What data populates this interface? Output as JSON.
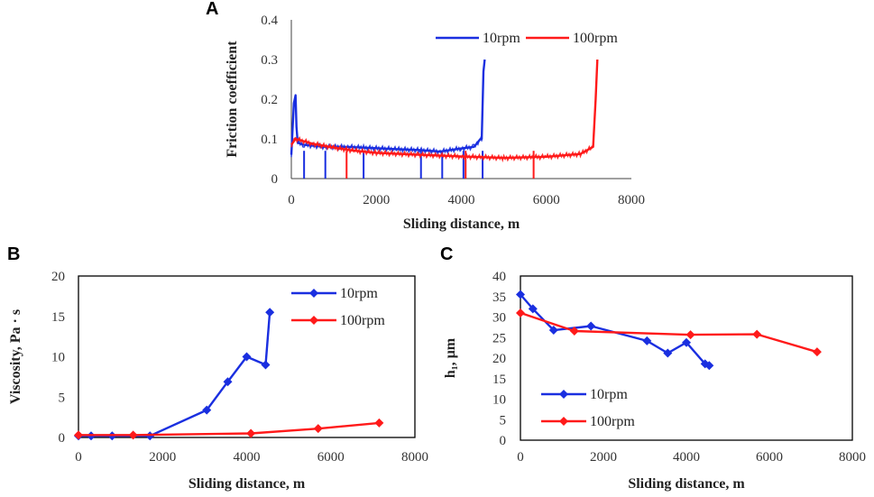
{
  "figure": {
    "panels": [
      "A",
      "B",
      "C"
    ]
  },
  "colors": {
    "series_1": "#1a2fe0",
    "series_2": "#ff1a1a",
    "axis": "#404040",
    "box": "#000000"
  },
  "chart_data": [
    {
      "id": "A",
      "type": "line",
      "title": "",
      "xlabel": "Sliding distance, m",
      "ylabel": "Friction coefficient",
      "xlim": [
        0,
        8000
      ],
      "ylim": [
        0,
        0.4
      ],
      "xticks": [
        "0",
        "2000",
        "4000",
        "6000",
        "8000"
      ],
      "yticks": [
        "0",
        "0.1",
        "0.2",
        "0.3",
        "0.4"
      ],
      "legend": "top-right",
      "series": [
        {
          "name": "10rpm",
          "x": [
            0,
            60,
            100,
            120,
            150,
            300,
            800,
            1300,
            1700,
            2500,
            3000,
            3500,
            4000,
            4300,
            4450,
            4480,
            4520,
            4550
          ],
          "y": [
            0.06,
            0.19,
            0.21,
            0.13,
            0.09,
            0.085,
            0.08,
            0.08,
            0.078,
            0.074,
            0.072,
            0.068,
            0.076,
            0.08,
            0.1,
            0.1,
            0.27,
            0.3
          ],
          "drops_to_zero_at": [
            300,
            800,
            1700,
            3050,
            3550,
            4050,
            4500
          ]
        },
        {
          "name": "100rpm",
          "x": [
            0,
            100,
            500,
            1000,
            1500,
            2000,
            3000,
            4000,
            5000,
            6000,
            6800,
            7100,
            7160,
            7200
          ],
          "y": [
            0.085,
            0.1,
            0.088,
            0.078,
            0.07,
            0.065,
            0.06,
            0.056,
            0.052,
            0.055,
            0.062,
            0.08,
            0.2,
            0.3
          ],
          "drops_to_zero_at": [
            1300,
            4100,
            5700
          ]
        }
      ]
    },
    {
      "id": "B",
      "type": "line",
      "title": "",
      "xlabel": "Sliding distance, m",
      "ylabel": "Viscosity, Pa · s",
      "xlim": [
        0,
        8000
      ],
      "ylim": [
        0,
        20
      ],
      "xticks": [
        "0",
        "2000",
        "4000",
        "6000",
        "8000"
      ],
      "yticks": [
        "0",
        "5",
        "10",
        "15",
        "20"
      ],
      "legend": "top-right",
      "series": [
        {
          "name": "10rpm",
          "x": [
            0,
            300,
            800,
            1700,
            3050,
            3550,
            4000,
            4450,
            4550
          ],
          "y": [
            0.2,
            0.2,
            0.2,
            0.2,
            3.4,
            6.9,
            10,
            9,
            15.5
          ]
        },
        {
          "name": "100rpm",
          "x": [
            0,
            1300,
            4100,
            5700,
            7150
          ],
          "y": [
            0.3,
            0.3,
            0.5,
            1.1,
            1.8
          ]
        }
      ]
    },
    {
      "id": "C",
      "type": "line",
      "title": "",
      "xlabel": "Sliding distance, m",
      "ylabel": "h₁, µm",
      "xlim": [
        0,
        8000
      ],
      "ylim": [
        0,
        40
      ],
      "xticks": [
        "0",
        "2000",
        "4000",
        "6000",
        "8000"
      ],
      "yticks": [
        "0",
        "5",
        "10",
        "15",
        "20",
        "25",
        "30",
        "35",
        "40"
      ],
      "legend": "bottom-left",
      "series": [
        {
          "name": "10rpm",
          "x": [
            0,
            300,
            800,
            1700,
            3050,
            3550,
            4000,
            4450,
            4550
          ],
          "y": [
            35.5,
            32,
            26.8,
            27.8,
            24.2,
            21.2,
            23.8,
            18.6,
            18.2
          ]
        },
        {
          "name": "100rpm",
          "x": [
            0,
            1300,
            4100,
            5700,
            7150
          ],
          "y": [
            31,
            26.6,
            25.7,
            25.8,
            21.5
          ]
        }
      ]
    }
  ]
}
